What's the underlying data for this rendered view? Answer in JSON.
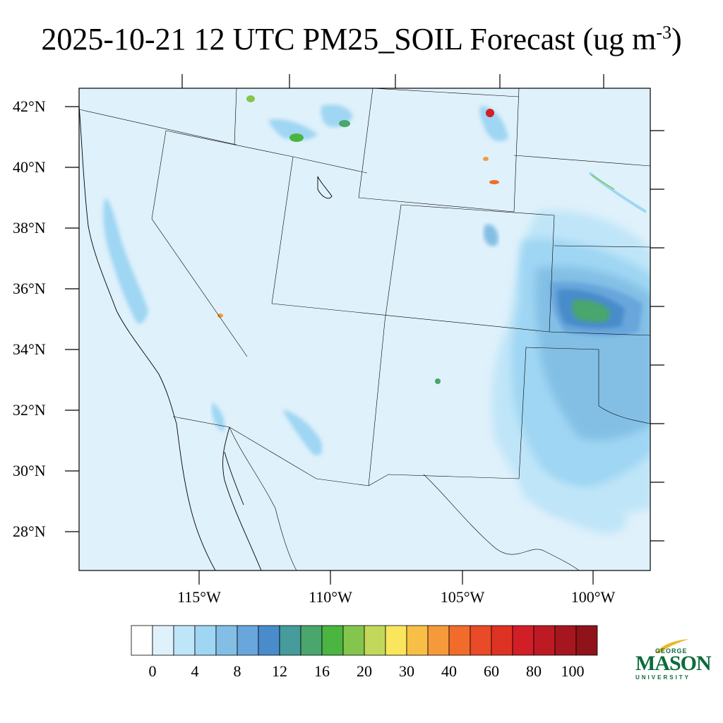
{
  "title": {
    "main": "2025-10-21 12 UTC PM25_SOIL Forecast (ug m",
    "superscript": "-3",
    "close": ")"
  },
  "map": {
    "background_color": "#dff1fb",
    "lat_labels": [
      "42°N",
      "40°N",
      "38°N",
      "36°N",
      "34°N",
      "32°N",
      "30°N",
      "28°N"
    ],
    "lon_labels": [
      "115°W",
      "110°W",
      "105°W",
      "100°W"
    ]
  },
  "colorbar": {
    "colors": [
      "#ffffff",
      "#dff1fb",
      "#bfe5f8",
      "#9fd6f3",
      "#83bfe5",
      "#68a6dc",
      "#4a8ccb",
      "#459c9b",
      "#49a66d",
      "#4ab540",
      "#84c64d",
      "#c2d85a",
      "#f9e65c",
      "#f8bf47",
      "#f59a3a",
      "#f16c2a",
      "#e94a27",
      "#de3224",
      "#d11e27",
      "#bd1a24",
      "#a5161f",
      "#8e141a"
    ],
    "labels": [
      "0",
      "4",
      "8",
      "12",
      "16",
      "20",
      "30",
      "40",
      "60",
      "80",
      "100"
    ]
  },
  "logo": {
    "line1": "GEORGE",
    "line2": "MASON",
    "line3": "UNIVERSITY",
    "color": "#0b6b3a",
    "accent_color": "#e8b92a"
  }
}
